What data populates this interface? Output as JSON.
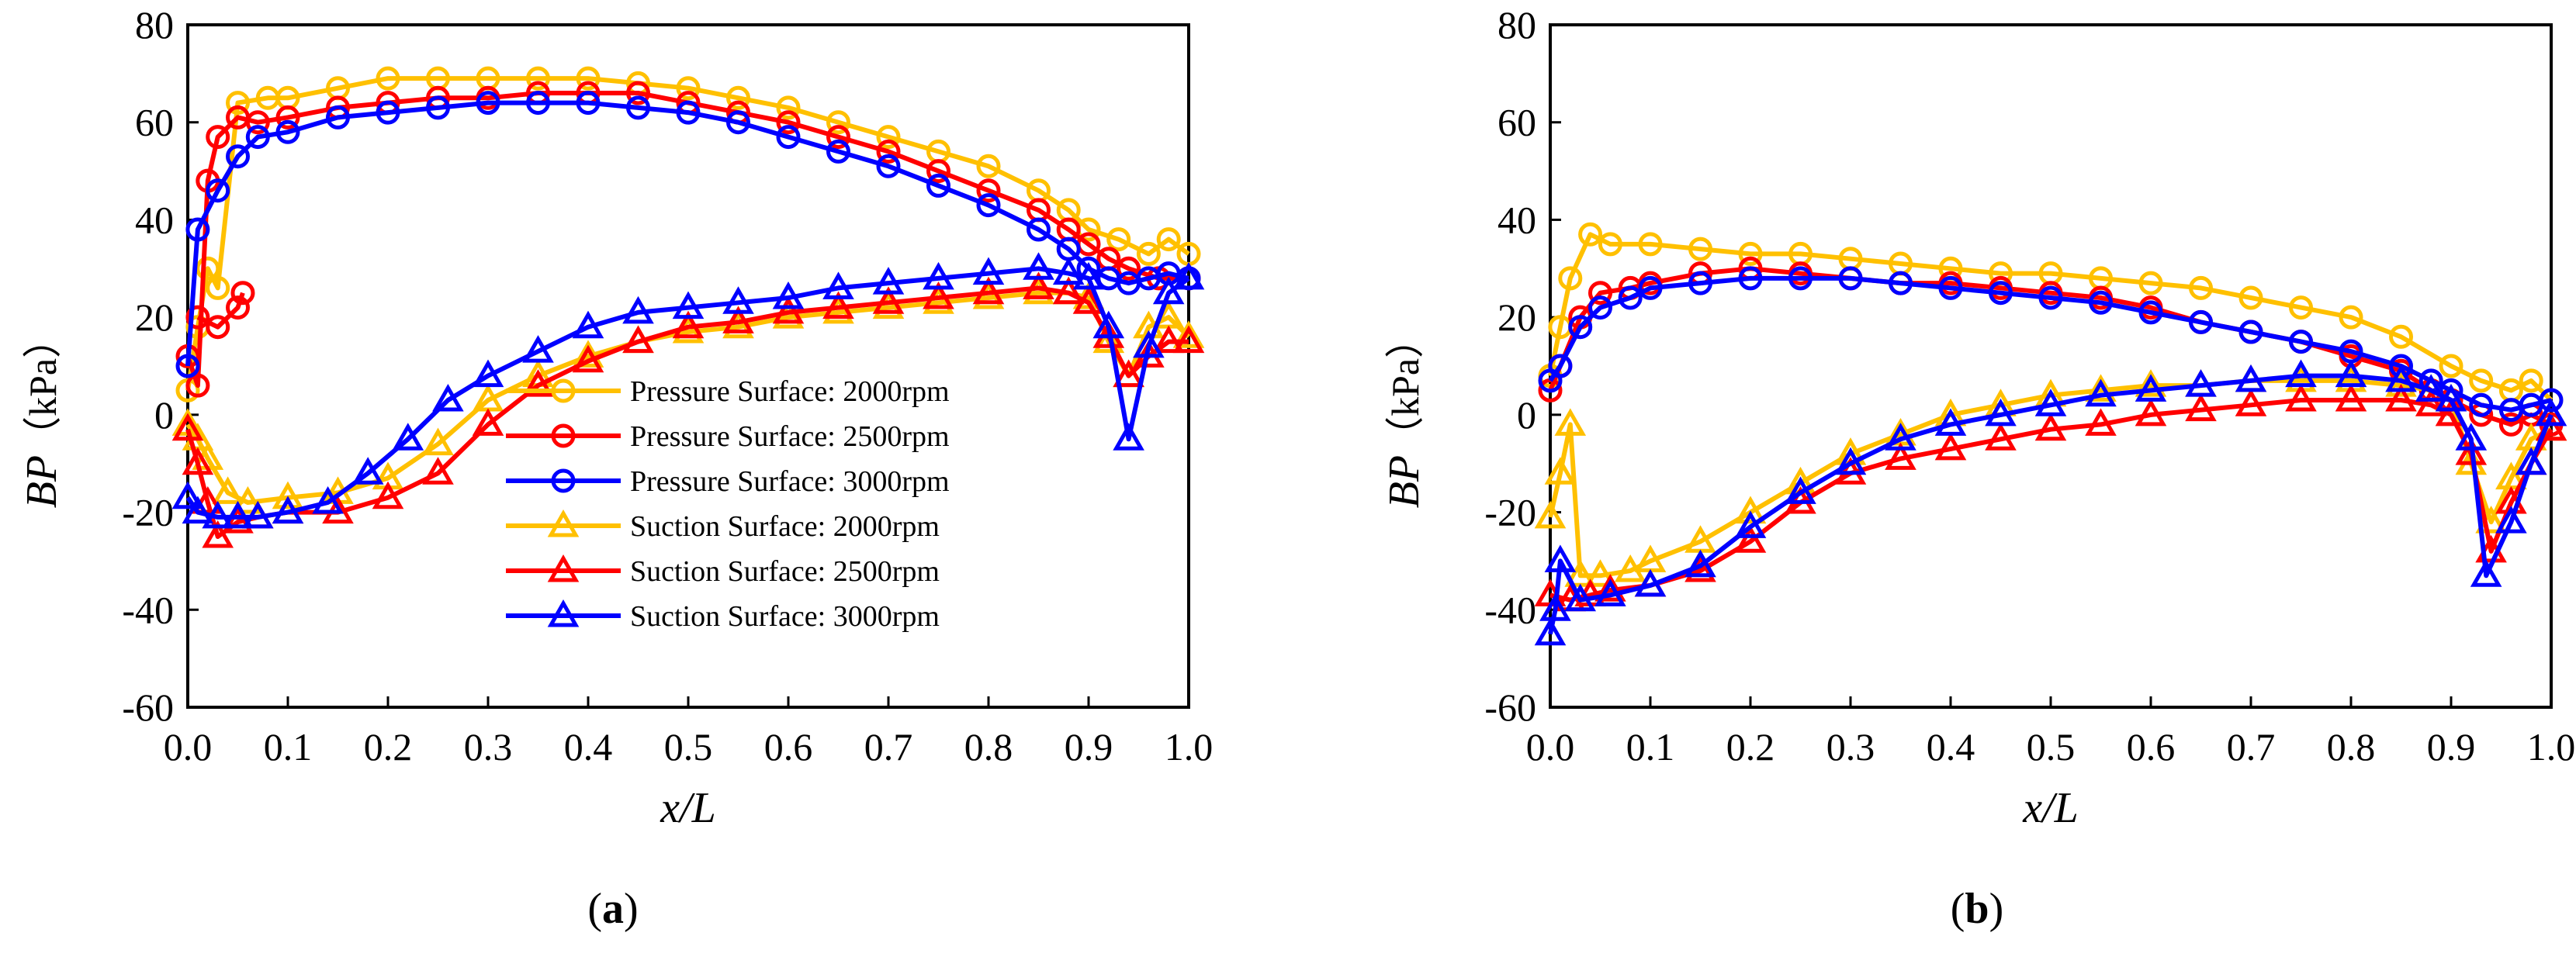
{
  "chart_data": [
    {
      "id": "a",
      "type": "line",
      "panel_label_open": "(",
      "panel_label_letter": "a",
      "panel_label_close": ")",
      "xlabel": "x/L",
      "ylabel_var": "BP",
      "ylabel_unit": "（kPa）",
      "xlim": [
        0.0,
        1.0
      ],
      "ylim": [
        -60,
        80
      ],
      "xticks": [
        "0.0",
        "0.1",
        "0.2",
        "0.3",
        "0.4",
        "0.5",
        "0.6",
        "0.7",
        "0.8",
        "0.9",
        "1.0"
      ],
      "yticks": [
        "-60",
        "-40",
        "-20",
        "0",
        "20",
        "40",
        "60",
        "80"
      ],
      "legend": true,
      "legend_position": "center-right",
      "series": [
        {
          "name": "Pressure Surface: 2000rpm",
          "color": "#FFC000",
          "marker": "circle",
          "x": [
            0.0,
            0.01,
            0.02,
            0.03,
            0.05,
            0.08,
            0.1,
            0.15,
            0.2,
            0.25,
            0.3,
            0.35,
            0.4,
            0.45,
            0.5,
            0.55,
            0.6,
            0.65,
            0.7,
            0.75,
            0.8,
            0.85,
            0.88,
            0.9,
            0.93,
            0.96,
            0.98,
            1.0
          ],
          "y": [
            5,
            18,
            30,
            26,
            64,
            65,
            65,
            67,
            69,
            69,
            69,
            69,
            69,
            68,
            67,
            65,
            63,
            60,
            57,
            54,
            51,
            46,
            42,
            38,
            36,
            33,
            36,
            33
          ]
        },
        {
          "name": "Pressure Surface: 2500rpm",
          "color": "#FF0000",
          "marker": "circle",
          "x": [
            0.0,
            0.01,
            0.02,
            0.03,
            0.05,
            0.07,
            0.1,
            0.15,
            0.2,
            0.25,
            0.3,
            0.35,
            0.4,
            0.45,
            0.5,
            0.55,
            0.6,
            0.65,
            0.7,
            0.75,
            0.8,
            0.85,
            0.88,
            0.9,
            0.92,
            0.94,
            0.97,
            1.0
          ],
          "y": [
            12,
            6,
            48,
            57,
            61,
            60,
            61,
            63,
            64,
            65,
            65,
            66,
            66,
            66,
            64,
            62,
            60,
            57,
            54,
            50,
            46,
            42,
            38,
            35,
            32,
            30,
            28,
            28
          ]
        },
        {
          "name": "Pressure Surface: 2500rpm branch",
          "color": "#FF0000",
          "marker": "circle",
          "legend": false,
          "x": [
            0.01,
            0.03,
            0.05,
            0.055
          ],
          "y": [
            20,
            18,
            22,
            25
          ]
        },
        {
          "name": "Pressure Surface: 3000rpm",
          "color": "#0000FF",
          "marker": "circle",
          "x": [
            0.0,
            0.01,
            0.03,
            0.05,
            0.07,
            0.1,
            0.15,
            0.2,
            0.25,
            0.3,
            0.35,
            0.4,
            0.45,
            0.5,
            0.55,
            0.6,
            0.65,
            0.7,
            0.75,
            0.8,
            0.85,
            0.88,
            0.9,
            0.92,
            0.94,
            0.96,
            0.98,
            1.0
          ],
          "y": [
            10,
            38,
            46,
            53,
            57,
            58,
            61,
            62,
            63,
            64,
            64,
            64,
            63,
            62,
            60,
            57,
            54,
            51,
            47,
            43,
            38,
            34,
            30,
            28,
            27,
            28,
            29,
            28
          ]
        },
        {
          "name": "Suction Surface: 2000rpm",
          "color": "#FFC000",
          "marker": "triangle",
          "x": [
            0.0,
            0.01,
            0.02,
            0.04,
            0.06,
            0.1,
            0.15,
            0.2,
            0.25,
            0.3,
            0.35,
            0.4,
            0.45,
            0.5,
            0.55,
            0.6,
            0.65,
            0.7,
            0.75,
            0.8,
            0.85,
            0.88,
            0.9,
            0.92,
            0.94,
            0.96,
            0.98,
            1.0
          ],
          "y": [
            -2,
            -5,
            -9,
            -16,
            -18,
            -17,
            -16,
            -13,
            -6,
            3,
            8,
            12,
            15,
            17,
            18,
            20,
            21,
            22,
            23,
            24,
            25,
            25,
            24,
            15,
            8,
            18,
            20,
            16
          ]
        },
        {
          "name": "Suction Surface: 2500rpm",
          "color": "#FF0000",
          "marker": "triangle",
          "x": [
            0.0,
            0.01,
            0.02,
            0.03,
            0.05,
            0.07,
            0.1,
            0.15,
            0.2,
            0.25,
            0.3,
            0.35,
            0.4,
            0.45,
            0.5,
            0.55,
            0.6,
            0.65,
            0.7,
            0.75,
            0.8,
            0.85,
            0.88,
            0.9,
            0.92,
            0.94,
            0.96,
            0.98,
            1.0
          ],
          "y": [
            -3,
            -10,
            -18,
            -25,
            -22,
            -21,
            -20,
            -20,
            -17,
            -12,
            -2,
            6,
            11,
            15,
            18,
            19,
            21,
            22,
            23,
            24,
            25,
            26,
            25,
            23,
            16,
            8,
            12,
            15,
            15
          ]
        },
        {
          "name": "Suction Surface: 3000rpm",
          "color": "#0000FF",
          "marker": "triangle",
          "x": [
            0.0,
            0.01,
            0.03,
            0.05,
            0.07,
            0.1,
            0.14,
            0.18,
            0.22,
            0.26,
            0.3,
            0.35,
            0.4,
            0.45,
            0.5,
            0.55,
            0.6,
            0.65,
            0.7,
            0.75,
            0.8,
            0.85,
            0.88,
            0.9,
            0.92,
            0.94,
            0.96,
            0.98,
            1.0
          ],
          "y": [
            -17,
            -20,
            -21,
            -21,
            -21,
            -20,
            -18,
            -12,
            -5,
            3,
            8,
            13,
            18,
            21,
            22,
            23,
            24,
            26,
            27,
            28,
            29,
            30,
            29,
            28,
            18,
            -5,
            14,
            25,
            28
          ]
        }
      ]
    },
    {
      "id": "b",
      "type": "line",
      "panel_label_open": "(",
      "panel_label_letter": "b",
      "panel_label_close": ")",
      "xlabel": "x/L",
      "ylabel_var": "BP",
      "ylabel_unit": "（kPa）",
      "xlim": [
        0.0,
        1.0
      ],
      "ylim": [
        -60,
        80
      ],
      "xticks": [
        "0.0",
        "0.1",
        "0.2",
        "0.3",
        "0.4",
        "0.5",
        "0.6",
        "0.7",
        "0.8",
        "0.9",
        "1.0"
      ],
      "yticks": [
        "-60",
        "-40",
        "-20",
        "0",
        "20",
        "40",
        "60",
        "80"
      ],
      "legend": false,
      "series": [
        {
          "name": "Pressure Surface: 2000rpm",
          "color": "#FFC000",
          "marker": "circle",
          "x": [
            0.0,
            0.01,
            0.02,
            0.04,
            0.06,
            0.1,
            0.15,
            0.2,
            0.25,
            0.3,
            0.35,
            0.4,
            0.45,
            0.5,
            0.55,
            0.6,
            0.65,
            0.7,
            0.75,
            0.8,
            0.85,
            0.9,
            0.93,
            0.96,
            0.98,
            1.0
          ],
          "y": [
            8,
            18,
            28,
            37,
            35,
            35,
            34,
            33,
            33,
            32,
            31,
            30,
            29,
            29,
            28,
            27,
            26,
            24,
            22,
            20,
            16,
            10,
            7,
            5,
            7,
            3
          ]
        },
        {
          "name": "Pressure Surface: 2500rpm",
          "color": "#FF0000",
          "marker": "circle",
          "x": [
            0.0,
            0.01,
            0.03,
            0.05,
            0.08,
            0.1,
            0.15,
            0.2,
            0.25,
            0.3,
            0.35,
            0.4,
            0.45,
            0.5,
            0.55,
            0.6,
            0.65,
            0.7,
            0.75,
            0.8,
            0.85,
            0.88,
            0.9,
            0.93,
            0.96,
            0.98,
            1.0
          ],
          "y": [
            5,
            10,
            20,
            25,
            26,
            27,
            29,
            30,
            29,
            28,
            27,
            27,
            26,
            25,
            24,
            22,
            19,
            17,
            15,
            12,
            9,
            5,
            3,
            0,
            -2,
            0,
            -2
          ]
        },
        {
          "name": "Pressure Surface: 3000rpm",
          "color": "#0000FF",
          "marker": "circle",
          "x": [
            0.0,
            0.01,
            0.03,
            0.05,
            0.08,
            0.1,
            0.15,
            0.2,
            0.25,
            0.3,
            0.35,
            0.4,
            0.45,
            0.5,
            0.55,
            0.6,
            0.65,
            0.7,
            0.75,
            0.8,
            0.85,
            0.88,
            0.9,
            0.93,
            0.96,
            0.98,
            1.0
          ],
          "y": [
            7,
            10,
            18,
            22,
            24,
            26,
            27,
            28,
            28,
            28,
            27,
            26,
            25,
            24,
            23,
            21,
            19,
            17,
            15,
            13,
            10,
            7,
            5,
            2,
            1,
            2,
            3
          ]
        },
        {
          "name": "Suction Surface: 2000rpm",
          "color": "#FFC000",
          "marker": "triangle",
          "x": [
            0.0,
            0.01,
            0.02,
            0.03,
            0.05,
            0.08,
            0.1,
            0.15,
            0.2,
            0.25,
            0.3,
            0.35,
            0.4,
            0.45,
            0.5,
            0.55,
            0.6,
            0.65,
            0.7,
            0.75,
            0.8,
            0.85,
            0.88,
            0.9,
            0.92,
            0.94,
            0.96,
            0.98,
            1.0
          ],
          "y": [
            -21,
            -12,
            -2,
            -33,
            -33,
            -32,
            -30,
            -26,
            -20,
            -14,
            -8,
            -4,
            0,
            2,
            4,
            5,
            6,
            6,
            7,
            7,
            7,
            6,
            5,
            3,
            -10,
            -22,
            -13,
            -5,
            -3
          ]
        },
        {
          "name": "Suction Surface: 2500rpm",
          "color": "#FF0000",
          "marker": "triangle",
          "x": [
            0.0,
            0.02,
            0.04,
            0.06,
            0.1,
            0.15,
            0.2,
            0.25,
            0.3,
            0.35,
            0.4,
            0.45,
            0.5,
            0.55,
            0.6,
            0.65,
            0.7,
            0.75,
            0.8,
            0.85,
            0.88,
            0.9,
            0.92,
            0.94,
            0.96,
            0.98,
            1.0
          ],
          "y": [
            -37,
            -38,
            -37,
            -36,
            -35,
            -32,
            -26,
            -18,
            -12,
            -9,
            -7,
            -5,
            -3,
            -2,
            0,
            1,
            2,
            3,
            3,
            3,
            2,
            0,
            -8,
            -28,
            -18,
            -10,
            -3
          ]
        },
        {
          "name": "Suction Surface: 3000rpm",
          "color": "#0000FF",
          "marker": "triangle",
          "x": [
            0.0,
            0.005,
            0.01,
            0.03,
            0.06,
            0.1,
            0.15,
            0.2,
            0.25,
            0.3,
            0.35,
            0.4,
            0.45,
            0.5,
            0.55,
            0.6,
            0.65,
            0.7,
            0.75,
            0.8,
            0.85,
            0.88,
            0.9,
            0.92,
            0.935,
            0.96,
            0.98,
            1.0
          ],
          "y": [
            -45,
            -40,
            -30,
            -38,
            -37,
            -35,
            -31,
            -23,
            -16,
            -10,
            -5,
            -2,
            0,
            2,
            4,
            5,
            6,
            7,
            8,
            8,
            7,
            5,
            3,
            -5,
            -33,
            -22,
            -10,
            0
          ]
        }
      ]
    }
  ]
}
